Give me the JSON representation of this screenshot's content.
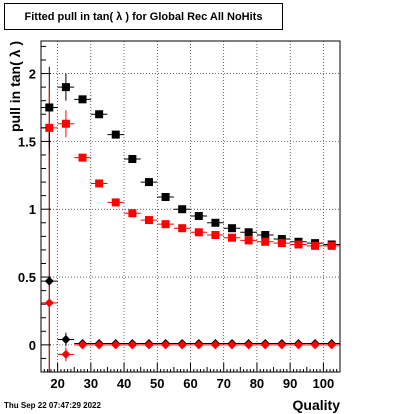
{
  "title": "Fitted pull in tan( λ ) for Global Rec All NoHits",
  "footer": {
    "date": "Thu Sep 22 07:47:29 2022"
  },
  "chart_data": {
    "type": "scatter",
    "xlabel": "Quality",
    "ylabel": "pull in tan( λ )",
    "xlim": [
      15,
      105
    ],
    "ylim": [
      -0.2,
      2.24
    ],
    "grid": true,
    "x_ticks": [
      {
        "value": 20,
        "label": "20"
      },
      {
        "value": 30,
        "label": "30"
      },
      {
        "value": 40,
        "label": "40"
      },
      {
        "value": 50,
        "label": "50"
      },
      {
        "value": 60,
        "label": "60"
      },
      {
        "value": 70,
        "label": "70"
      },
      {
        "value": 80,
        "label": "80"
      },
      {
        "value": 90,
        "label": "90"
      },
      {
        "value": 100,
        "label": "100"
      }
    ],
    "y_ticks": [
      {
        "value": 0,
        "label": "0"
      },
      {
        "value": 0.5,
        "label": "0.5"
      },
      {
        "value": 1,
        "label": "1"
      },
      {
        "value": 1.5,
        "label": "1.5"
      },
      {
        "value": 2,
        "label": "2"
      }
    ],
    "x": [
      17.5,
      22.5,
      27.5,
      32.5,
      37.5,
      42.5,
      47.5,
      52.5,
      57.5,
      62.5,
      67.5,
      72.5,
      77.5,
      82.5,
      87.5,
      92.5,
      97.5,
      102.5
    ],
    "series": [
      {
        "color": "#000000",
        "marker": "square",
        "values": [
          1.75,
          1.9,
          1.81,
          1.7,
          1.55,
          1.37,
          1.2,
          1.09,
          1.0,
          0.95,
          0.9,
          0.86,
          0.83,
          0.81,
          0.78,
          0.76,
          0.75,
          0.74
        ],
        "yerr": [
          0.3,
          0.1,
          0.0,
          0.0,
          0.0,
          0.0,
          0.0,
          0.0,
          0.0,
          0.0,
          0.0,
          0.0,
          0.0,
          0.0,
          0.0,
          0.0,
          0.0,
          0.0
        ]
      },
      {
        "color": "#ff0000",
        "marker": "square",
        "values": [
          1.6,
          1.63,
          1.38,
          1.19,
          1.05,
          0.97,
          0.92,
          0.89,
          0.86,
          0.83,
          0.81,
          0.79,
          0.77,
          0.76,
          0.75,
          0.74,
          0.73,
          0.73
        ],
        "yerr": [
          0.3,
          0.1,
          0.0,
          0.0,
          0.0,
          0.0,
          0.0,
          0.0,
          0.0,
          0.0,
          0.0,
          0.0,
          0.0,
          0.0,
          0.0,
          0.0,
          0.0,
          0.0
        ]
      },
      {
        "color": "#000000",
        "marker": "diamond",
        "values": [
          0.47,
          0.04,
          0.01,
          0.01,
          0.01,
          0.01,
          0.01,
          0.01,
          0.01,
          0.01,
          0.01,
          0.01,
          0.01,
          0.01,
          0.01,
          0.01,
          0.01,
          0.01
        ],
        "yerr": [
          1.1,
          0.05,
          0.0,
          0.0,
          0.0,
          0.0,
          0.0,
          0.0,
          0.0,
          0.0,
          0.0,
          0.0,
          0.0,
          0.0,
          0.0,
          0.0,
          0.0,
          0.0
        ]
      },
      {
        "color": "#ff0000",
        "marker": "diamond",
        "values": [
          0.31,
          -0.07,
          0.0,
          0.0,
          0.0,
          0.0,
          0.0,
          0.0,
          0.0,
          0.0,
          0.0,
          0.0,
          0.0,
          0.0,
          0.0,
          0.0,
          0.0,
          0.0
        ],
        "yerr": [
          1.1,
          0.05,
          0.0,
          0.0,
          0.0,
          0.0,
          0.0,
          0.0,
          0.0,
          0.0,
          0.0,
          0.0,
          0.0,
          0.0,
          0.0,
          0.0,
          0.0,
          0.0
        ]
      }
    ]
  }
}
